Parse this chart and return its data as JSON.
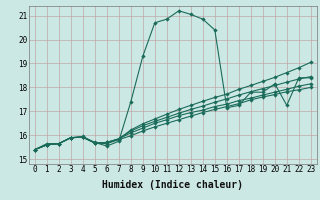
{
  "xlabel": "Humidex (Indice chaleur)",
  "xlim": [
    -0.5,
    23.5
  ],
  "ylim": [
    14.8,
    21.4
  ],
  "yticks": [
    15,
    16,
    17,
    18,
    19,
    20,
    21
  ],
  "xticks": [
    0,
    1,
    2,
    3,
    4,
    5,
    6,
    7,
    8,
    9,
    10,
    11,
    12,
    13,
    14,
    15,
    16,
    17,
    18,
    19,
    20,
    21,
    22,
    23
  ],
  "bg_color": "#cce8e4",
  "grid_color": "#c0a8a8",
  "line_color": "#1a6b5a",
  "series": [
    [
      15.4,
      15.65,
      15.65,
      15.9,
      15.95,
      15.7,
      15.55,
      15.75,
      17.4,
      19.3,
      20.7,
      20.85,
      21.2,
      21.05,
      20.85,
      20.4,
      17.15,
      17.25,
      17.8,
      17.8,
      18.15,
      17.25,
      18.4,
      18.4
    ],
    [
      15.4,
      15.6,
      15.65,
      15.9,
      15.92,
      15.68,
      15.65,
      15.82,
      15.98,
      16.18,
      16.35,
      16.5,
      16.65,
      16.8,
      16.95,
      17.08,
      17.2,
      17.32,
      17.48,
      17.6,
      17.7,
      17.82,
      17.9,
      18.0
    ],
    [
      15.4,
      15.6,
      15.65,
      15.9,
      15.92,
      15.68,
      15.7,
      15.85,
      16.1,
      16.3,
      16.5,
      16.65,
      16.82,
      16.95,
      17.05,
      17.2,
      17.3,
      17.45,
      17.55,
      17.68,
      17.8,
      17.92,
      18.05,
      18.15
    ],
    [
      15.4,
      15.6,
      15.65,
      15.9,
      15.92,
      15.68,
      15.7,
      15.85,
      16.18,
      16.4,
      16.58,
      16.75,
      16.92,
      17.08,
      17.22,
      17.38,
      17.52,
      17.68,
      17.82,
      17.95,
      18.08,
      18.22,
      18.35,
      18.45
    ],
    [
      15.4,
      15.6,
      15.65,
      15.9,
      15.92,
      15.68,
      15.7,
      15.85,
      16.22,
      16.48,
      16.68,
      16.88,
      17.08,
      17.25,
      17.42,
      17.58,
      17.72,
      17.92,
      18.08,
      18.25,
      18.42,
      18.62,
      18.82,
      19.05
    ]
  ]
}
